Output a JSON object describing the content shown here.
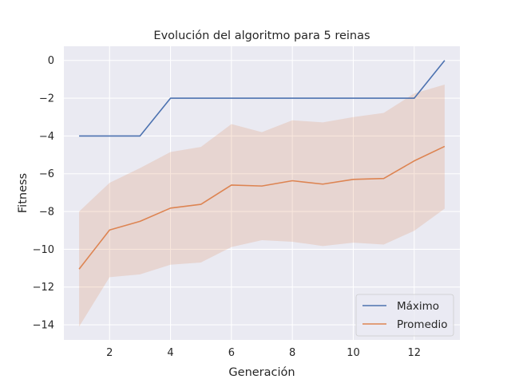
{
  "chart_data": {
    "type": "line",
    "title": "Evolución del algoritmo para 5 reinas",
    "xlabel": "Generación",
    "ylabel": "Fitness",
    "x": [
      1,
      2,
      3,
      4,
      5,
      6,
      7,
      8,
      9,
      10,
      11,
      12,
      13
    ],
    "xlim": [
      0.5,
      13.5
    ],
    "ylim": [
      -14.8,
      0.75
    ],
    "xticks": [
      2,
      4,
      6,
      8,
      10,
      12
    ],
    "yticks": [
      0,
      -2,
      -4,
      -6,
      -8,
      -10,
      -12,
      -14
    ],
    "xtick_labels": [
      "2",
      "4",
      "6",
      "8",
      "10",
      "12"
    ],
    "ytick_labels": [
      "0",
      "−2",
      "−4",
      "−6",
      "−8",
      "−10",
      "−12",
      "−14"
    ],
    "grid": true,
    "legend_position": "lower-right",
    "series": [
      {
        "name": "Máximo",
        "color": "#4c72b0",
        "values": [
          -4,
          -4,
          -4,
          -2,
          -2,
          -2,
          -2,
          -2,
          -2,
          -2,
          -2,
          -2,
          0
        ]
      },
      {
        "name": "Promedio",
        "color": "#dd8452",
        "values": [
          -11.05,
          -8.98,
          -8.52,
          -7.82,
          -7.62,
          -6.6,
          -6.65,
          -6.37,
          -6.55,
          -6.3,
          -6.25,
          -5.32,
          -4.55
        ],
        "band_upper": [
          -8.0,
          -6.48,
          -5.7,
          -4.85,
          -4.58,
          -3.37,
          -3.8,
          -3.17,
          -3.28,
          -3.0,
          -2.78,
          -1.75,
          -1.28
        ],
        "band_lower": [
          -14.1,
          -11.48,
          -11.33,
          -10.82,
          -10.7,
          -9.88,
          -9.52,
          -9.6,
          -9.83,
          -9.65,
          -9.75,
          -9.02,
          -7.85
        ]
      }
    ]
  }
}
